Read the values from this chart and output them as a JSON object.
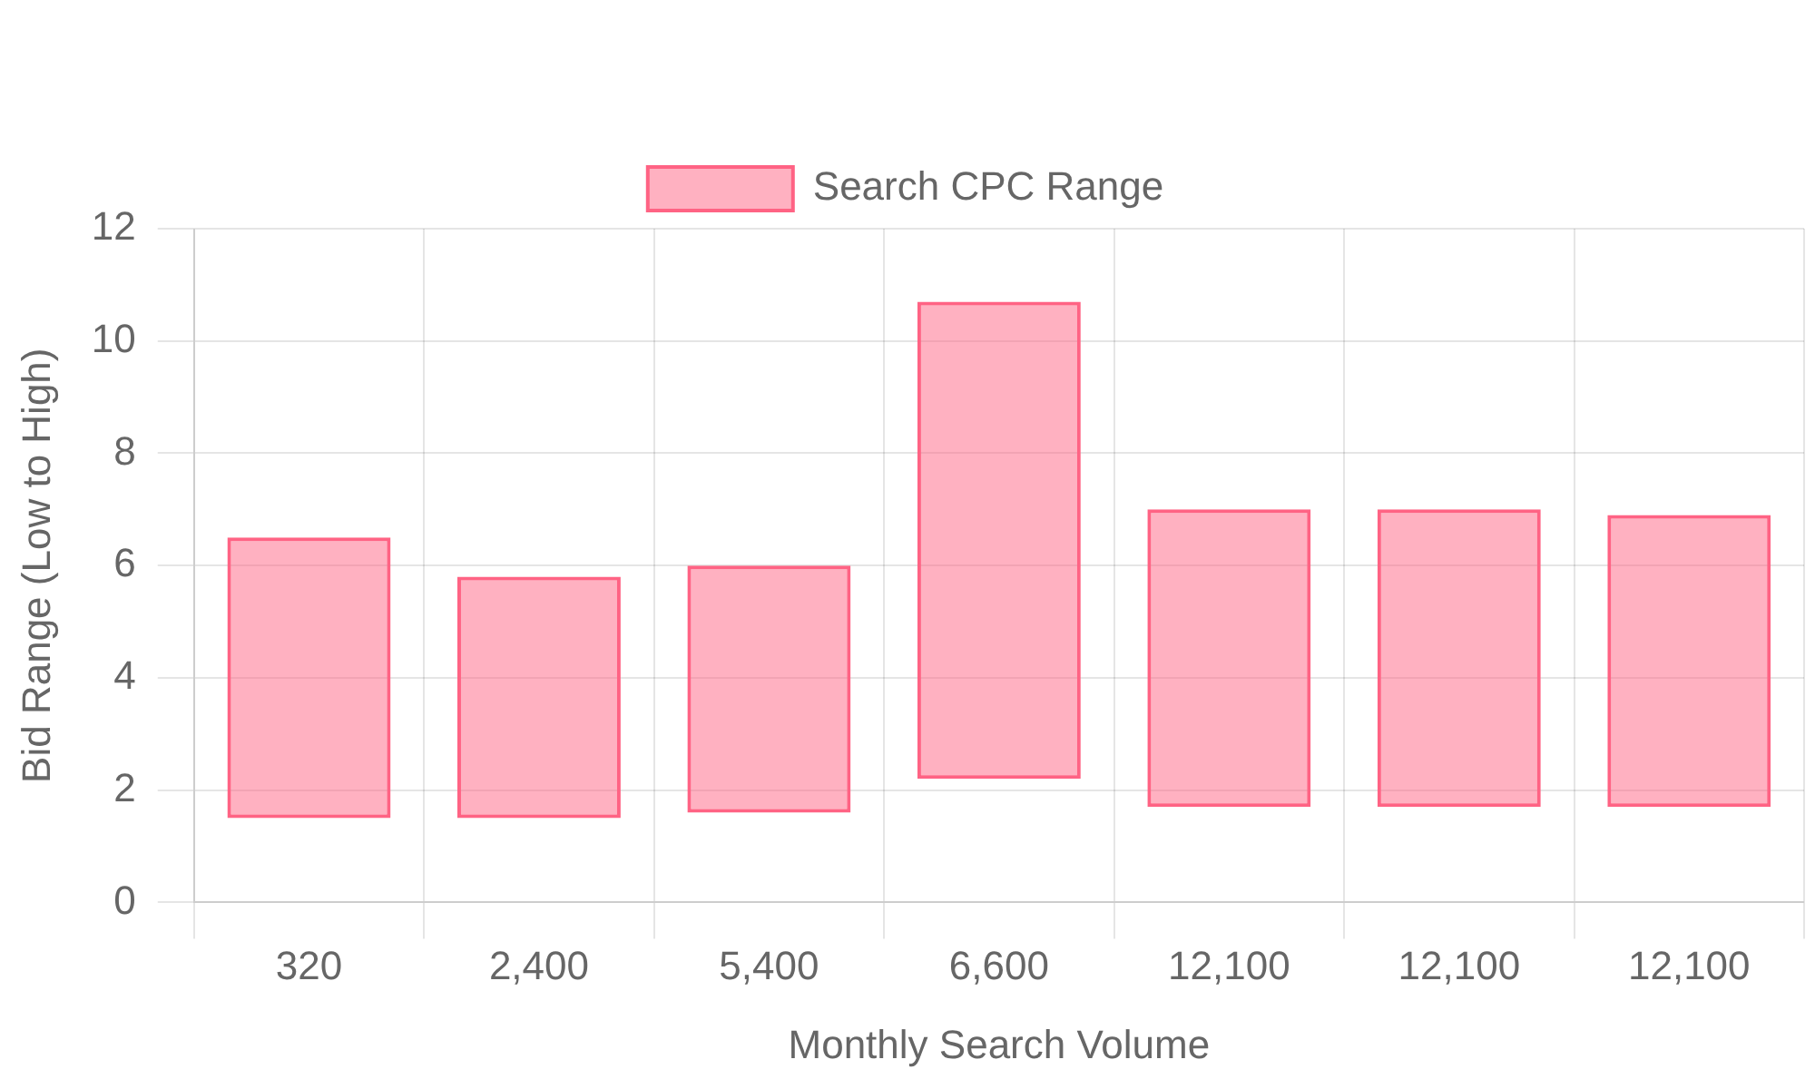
{
  "chart_data": {
    "type": "bar",
    "xlabel": "Monthly Search Volume",
    "ylabel": "Bid Range (Low to High)",
    "categories": [
      "320",
      "2,400",
      "5,400",
      "6,600",
      "12,100",
      "12,100",
      "12,100"
    ],
    "series": [
      {
        "name": "Search CPC Range",
        "color": "#ff6384",
        "values": [
          5.0,
          4.3,
          4.4,
          8.5,
          5.3,
          5.3,
          5.2
        ],
        "base": [
          1.5,
          1.5,
          1.6,
          2.2,
          1.7,
          1.7,
          1.7
        ]
      }
    ],
    "ylim": [
      0,
      12
    ],
    "yticks": [
      0,
      2,
      4,
      6,
      8,
      10,
      12
    ],
    "grid": true,
    "legend": "top"
  }
}
